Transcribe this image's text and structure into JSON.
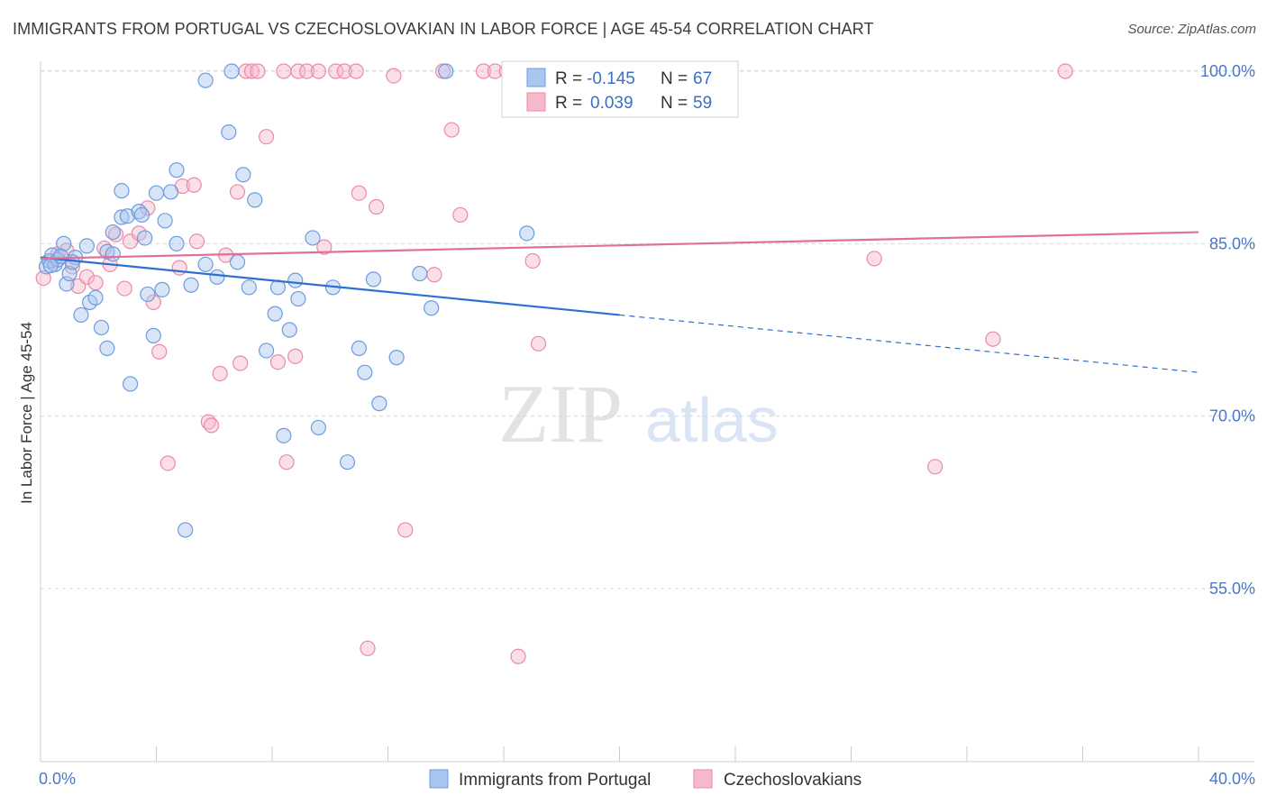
{
  "header": {
    "title": "IMMIGRANTS FROM PORTUGAL VS CZECHOSLOVAKIAN IN LABOR FORCE | AGE 45-54 CORRELATION CHART",
    "source": "Source: ZipAtlas.com"
  },
  "watermark": {
    "zip": "ZIP",
    "atlas": "atlas"
  },
  "colors": {
    "blue_fill": "#a9c6ee",
    "blue_stroke": "#6d9be0",
    "blue_line": "#2f6fcf",
    "pink_fill": "#f6b9cb",
    "pink_stroke": "#ea8aa8",
    "pink_line": "#e0709a",
    "grid": "#d8d8d8",
    "tick_label": "#4a78c8"
  },
  "legend": {
    "rows": [
      {
        "r_label": "R =",
        "r_value": "-0.145",
        "n_label": "N =",
        "n_value": "67"
      },
      {
        "r_label": "R =",
        "r_value": "0.039",
        "n_label": "N =",
        "n_value": "59"
      }
    ]
  },
  "chart_data": {
    "type": "scatter",
    "title": "IMMIGRANTS FROM PORTUGAL VS CZECHOSLOVAKIAN IN LABOR FORCE | AGE 45-54 CORRELATION CHART",
    "xlabel": "",
    "ylabel": "In Labor Force | Age 45-54",
    "xlim": [
      0,
      40
    ],
    "ylim": [
      41,
      102
    ],
    "x_tick_labels": [
      "0.0%",
      "40.0%"
    ],
    "y_ticks": [
      55,
      70,
      85,
      100
    ],
    "y_tick_labels": [
      "55.0%",
      "70.0%",
      "85.0%",
      "100.0%"
    ],
    "legend_position": "top-center",
    "series": [
      {
        "name": "Immigrants from Portugal",
        "color": "#a9c6ee",
        "R": -0.145,
        "N": 67,
        "trend": {
          "x0": 0,
          "y0": 83.8,
          "x1": 20,
          "y1": 78.8,
          "x_dash_end": 40,
          "y_dash_end": 73.8
        },
        "points": [
          [
            0.2,
            83.0
          ],
          [
            0.3,
            83.5
          ],
          [
            0.4,
            84.0
          ],
          [
            0.5,
            83.2
          ],
          [
            0.6,
            83.6
          ],
          [
            0.8,
            85.0
          ],
          [
            0.9,
            81.5
          ],
          [
            1.0,
            82.4
          ],
          [
            1.2,
            83.8
          ],
          [
            1.4,
            78.8
          ],
          [
            1.6,
            84.8
          ],
          [
            1.7,
            79.9
          ],
          [
            1.9,
            80.3
          ],
          [
            2.1,
            77.7
          ],
          [
            2.3,
            84.3
          ],
          [
            2.3,
            75.9
          ],
          [
            2.5,
            84.1
          ],
          [
            2.5,
            86.0
          ],
          [
            2.8,
            87.3
          ],
          [
            2.8,
            89.6
          ],
          [
            3.0,
            87.4
          ],
          [
            3.1,
            72.8
          ],
          [
            3.4,
            87.8
          ],
          [
            3.5,
            87.5
          ],
          [
            3.6,
            85.5
          ],
          [
            3.7,
            80.6
          ],
          [
            3.9,
            77.0
          ],
          [
            4.0,
            89.4
          ],
          [
            4.2,
            81.0
          ],
          [
            4.3,
            87.0
          ],
          [
            4.5,
            89.5
          ],
          [
            4.7,
            85.0
          ],
          [
            4.7,
            91.4
          ],
          [
            5.0,
            60.1
          ],
          [
            5.2,
            81.4
          ],
          [
            5.7,
            83.2
          ],
          [
            5.7,
            99.2
          ],
          [
            6.1,
            82.1
          ],
          [
            6.5,
            94.7
          ],
          [
            6.6,
            100.0
          ],
          [
            6.8,
            83.4
          ],
          [
            7.0,
            91.0
          ],
          [
            7.2,
            81.2
          ],
          [
            7.4,
            88.8
          ],
          [
            7.8,
            75.7
          ],
          [
            8.1,
            78.9
          ],
          [
            8.2,
            81.2
          ],
          [
            8.4,
            68.3
          ],
          [
            8.6,
            77.5
          ],
          [
            8.8,
            81.8
          ],
          [
            8.9,
            80.2
          ],
          [
            9.4,
            85.5
          ],
          [
            9.6,
            69.0
          ],
          [
            10.1,
            81.2
          ],
          [
            10.6,
            66.0
          ],
          [
            11.0,
            75.9
          ],
          [
            11.2,
            73.8
          ],
          [
            11.5,
            81.9
          ],
          [
            11.7,
            71.1
          ],
          [
            12.3,
            75.1
          ],
          [
            13.1,
            82.4
          ],
          [
            13.5,
            79.4
          ],
          [
            14.0,
            100.0
          ],
          [
            16.8,
            85.9
          ],
          [
            1.1,
            83.4
          ],
          [
            0.7,
            83.9
          ],
          [
            0.35,
            83.1
          ]
        ]
      },
      {
        "name": "Czechoslovakians",
        "color": "#f6b9cb",
        "R": 0.039,
        "N": 59,
        "trend": {
          "x0": 0,
          "y0": 83.7,
          "x1": 40,
          "y1": 86.0
        },
        "points": [
          [
            0.1,
            82.0
          ],
          [
            0.4,
            83.5
          ],
          [
            0.6,
            84.1
          ],
          [
            0.9,
            84.4
          ],
          [
            1.1,
            83.0
          ],
          [
            1.3,
            81.3
          ],
          [
            1.6,
            82.1
          ],
          [
            1.9,
            81.6
          ],
          [
            2.2,
            84.6
          ],
          [
            2.4,
            83.2
          ],
          [
            2.6,
            85.8
          ],
          [
            2.9,
            81.1
          ],
          [
            3.1,
            85.2
          ],
          [
            3.4,
            85.9
          ],
          [
            3.7,
            88.1
          ],
          [
            3.9,
            79.9
          ],
          [
            4.1,
            75.6
          ],
          [
            4.4,
            65.9
          ],
          [
            4.8,
            82.9
          ],
          [
            4.9,
            90.0
          ],
          [
            5.3,
            90.1
          ],
          [
            5.4,
            85.2
          ],
          [
            5.8,
            69.5
          ],
          [
            5.9,
            69.2
          ],
          [
            6.2,
            73.7
          ],
          [
            6.4,
            84.0
          ],
          [
            6.8,
            89.5
          ],
          [
            6.9,
            74.6
          ],
          [
            7.1,
            100.0
          ],
          [
            7.3,
            100.0
          ],
          [
            7.5,
            100.0
          ],
          [
            7.8,
            94.3
          ],
          [
            8.2,
            74.7
          ],
          [
            8.4,
            100.0
          ],
          [
            8.5,
            66.0
          ],
          [
            8.8,
            75.2
          ],
          [
            8.9,
            100.0
          ],
          [
            9.2,
            100.0
          ],
          [
            9.6,
            100.0
          ],
          [
            9.8,
            84.7
          ],
          [
            10.2,
            100.0
          ],
          [
            10.5,
            100.0
          ],
          [
            10.9,
            100.0
          ],
          [
            11.0,
            89.4
          ],
          [
            11.3,
            49.8
          ],
          [
            11.6,
            88.2
          ],
          [
            12.2,
            99.6
          ],
          [
            12.6,
            60.1
          ],
          [
            13.6,
            82.3
          ],
          [
            13.9,
            100.0
          ],
          [
            14.2,
            94.9
          ],
          [
            14.5,
            87.5
          ],
          [
            15.3,
            100.0
          ],
          [
            15.7,
            100.0
          ],
          [
            16.1,
            100.0
          ],
          [
            16.5,
            49.1
          ],
          [
            17.0,
            83.5
          ],
          [
            17.2,
            76.3
          ],
          [
            28.8,
            83.7
          ]
        ],
        "extra_points": [
          [
            30.9,
            65.6
          ],
          [
            32.9,
            76.7
          ],
          [
            35.4,
            100.0
          ]
        ]
      }
    ]
  },
  "bottom_legend": {
    "items": [
      {
        "label": "Immigrants from Portugal"
      },
      {
        "label": "Czechoslovakians"
      }
    ]
  }
}
